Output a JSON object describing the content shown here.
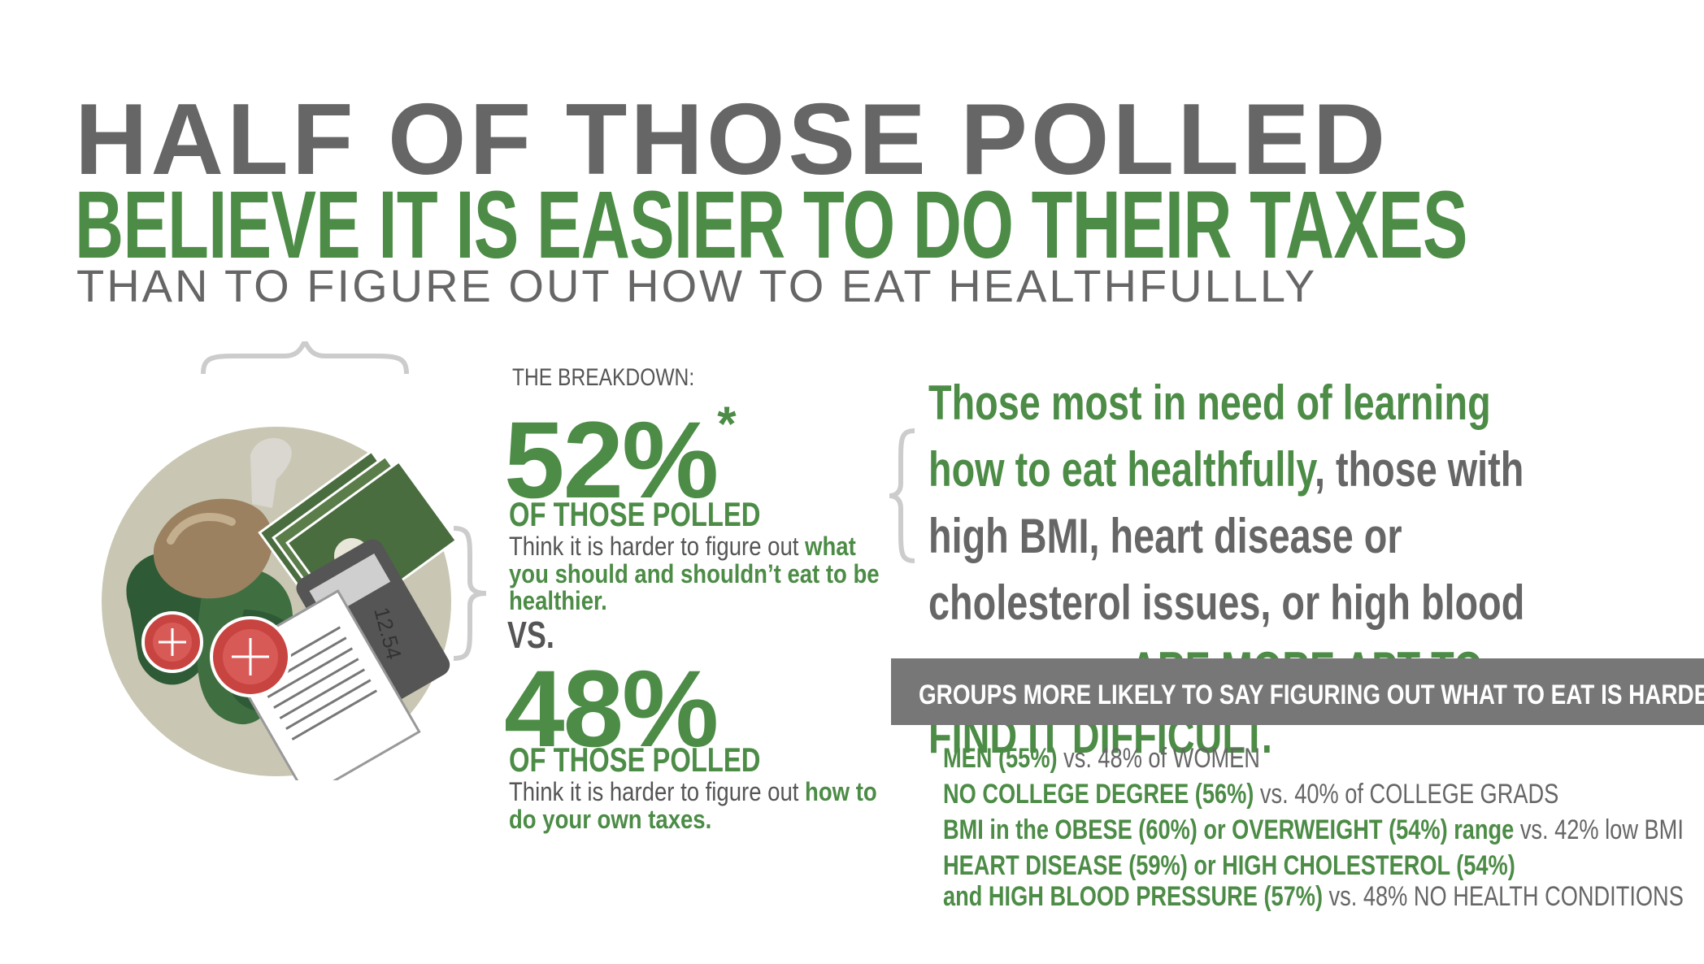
{
  "title": {
    "line1": "HALF OF THOSE POLLED",
    "line2": "BELIEVE IT IS EASIER TO DO THEIR TAXES",
    "line3": "THAN TO FIGURE OUT HOW TO EAT HEALTHFULLLY"
  },
  "illustration": {
    "receipt_amount": "12.54"
  },
  "breakdown": {
    "label": "THE BREAKDOWN:",
    "stat1": {
      "percent": "52%",
      "asterisk": "*",
      "polled_label": "OF THOSE POLLED",
      "desc_plain": "Think it is harder to figure out ",
      "desc_bold": "what you should and shouldn’t eat to be healthier."
    },
    "vs": "VS.",
    "stat2": {
      "percent": "48%",
      "polled_label": "OF THOSE POLLED",
      "desc_plain": "Think it is harder to figure out ",
      "desc_bold": "how to do your own taxes."
    }
  },
  "right_paragraph": {
    "part_green1": "Those most in need of learning how to eat healthfully",
    "part_gray": ", those with high BMI, heart disease or cholesterol issues, or high blood pressure – ",
    "part_green2": "ARE MORE APT TO FIND IT DIFFICULT."
  },
  "groups": {
    "header": "GROUPS MORE LIKELY TO SAY FIGURING OUT WHAT TO EAT IS HARDER:",
    "rows": [
      {
        "bold": "MEN (55%)",
        "light": " vs. 48% of WOMEN"
      },
      {
        "bold": "NO COLLEGE DEGREE (56%)",
        "light": " vs. 40% of COLLEGE GRADS"
      },
      {
        "bold": "BMI in the OBESE (60%) or OVERWEIGHT (54%) range",
        "light": "  vs. 42% low BMI"
      },
      {
        "bold": "HEART DISEASE (59%) or HIGH CHOLESTEROL (54%)",
        "light": ""
      },
      {
        "bold": "and HIGH BLOOD PRESSURE (57%)",
        "light": " vs. 48% NO HEALTH CONDITIONS"
      }
    ]
  },
  "colors": {
    "green": "#4c8c46",
    "gray": "#666666",
    "bar_gray": "#777777"
  }
}
